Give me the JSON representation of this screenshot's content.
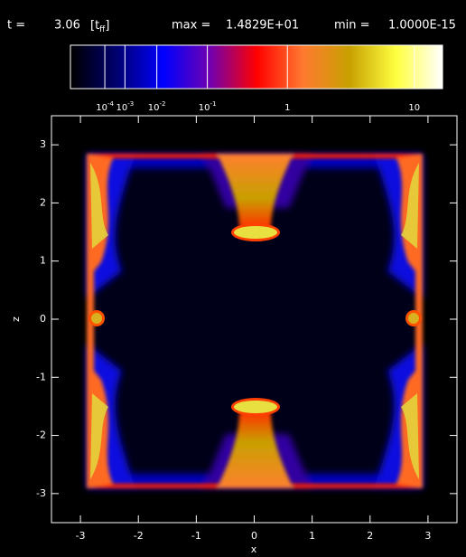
{
  "header": {
    "time_label": "t =",
    "time_value": "3.06",
    "time_unit": "[t",
    "time_unit_sub": "ff",
    "time_unit_close": "]",
    "max_label": "max =",
    "max_value": "1.4829E+01",
    "min_label": "min =",
    "min_value": "1.0000E-15"
  },
  "chart_data": {
    "type": "heatmap",
    "xlabel": "x",
    "ylabel": "z",
    "xlim": [
      -3.5,
      3.5
    ],
    "ylim": [
      -3.5,
      3.5
    ],
    "xticks": [
      -3,
      -2,
      -1,
      0,
      1,
      2,
      3
    ],
    "yticks": [
      -3,
      -2,
      -1,
      0,
      1,
      2,
      3
    ],
    "colorbar": {
      "scale": "power",
      "exponent": 0.2,
      "lim": [
        0,
        14.829
      ],
      "colormap": [
        "#000000",
        "#000070",
        "#0000ff",
        "#7000b0",
        "#ff0000",
        "#ff7a30",
        "#c8a000",
        "#ffff40",
        "#ffffff"
      ],
      "ticks": [
        {
          "value": 0.0001,
          "label": "10",
          "exponent": "-4"
        },
        {
          "value": 0.001,
          "label": "10",
          "exponent": "-3"
        },
        {
          "value": 0.01,
          "label": "10",
          "exponent": "-2"
        },
        {
          "value": 0.1,
          "label": "10",
          "exponent": "-1"
        },
        1,
        10
      ]
    }
  }
}
